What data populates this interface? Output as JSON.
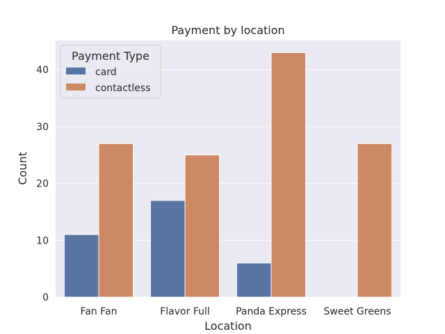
{
  "chart_data": {
    "type": "bar",
    "title": "Payment by location",
    "xlabel": "Location",
    "ylabel": "Count",
    "categories": [
      "Fan Fan",
      "Flavor Full",
      "Panda Express",
      "Sweet Greens"
    ],
    "series": [
      {
        "name": "card",
        "values": [
          11,
          17,
          6,
          0
        ],
        "color": "#5875a4"
      },
      {
        "name": "contactless",
        "values": [
          27,
          25,
          43,
          27
        ],
        "color": "#cc8963"
      }
    ],
    "ylim": [
      0,
      45.15
    ],
    "yticks": [
      0,
      10,
      20,
      30,
      40
    ],
    "grid": true,
    "legend": {
      "title": "Payment Type",
      "placement": "top-left"
    },
    "background": "#eaeaf2",
    "grid_color": "#ffffff"
  }
}
